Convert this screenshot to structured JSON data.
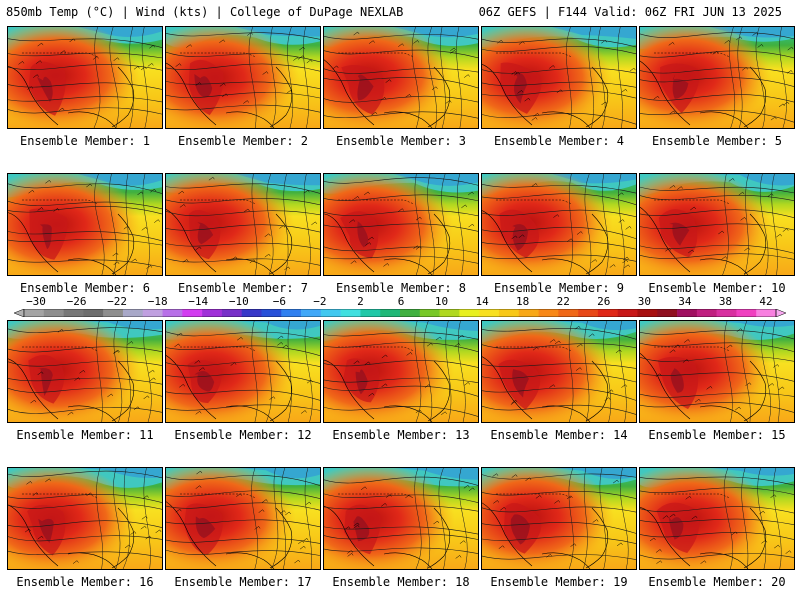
{
  "header": {
    "left": "850mb Temp (°C) | Wind (kts) | College of DuPage NEXLAB",
    "right": "06Z GEFS | F144 Valid: 06Z FRI JUN 13 2025"
  },
  "panels": [
    {
      "label": "Ensemble Member: 1"
    },
    {
      "label": "Ensemble Member: 2"
    },
    {
      "label": "Ensemble Member: 3"
    },
    {
      "label": "Ensemble Member: 4"
    },
    {
      "label": "Ensemble Member: 5"
    },
    {
      "label": "Ensemble Member: 6"
    },
    {
      "label": "Ensemble Member: 7"
    },
    {
      "label": "Ensemble Member: 8"
    },
    {
      "label": "Ensemble Member: 9"
    },
    {
      "label": "Ensemble Member: 10"
    },
    {
      "label": "Ensemble Member: 11"
    },
    {
      "label": "Ensemble Member: 12"
    },
    {
      "label": "Ensemble Member: 13"
    },
    {
      "label": "Ensemble Member: 14"
    },
    {
      "label": "Ensemble Member: 15"
    },
    {
      "label": "Ensemble Member: 16"
    },
    {
      "label": "Ensemble Member: 17"
    },
    {
      "label": "Ensemble Member: 18"
    },
    {
      "label": "Ensemble Member: 19"
    },
    {
      "label": "Ensemble Member: 20"
    }
  ],
  "colorbar": {
    "ticks": [
      "−30",
      "−26",
      "−22",
      "−18",
      "−14",
      "−10",
      "−6",
      "−2",
      "2",
      "6",
      "10",
      "14",
      "18",
      "22",
      "26",
      "30",
      "34",
      "38",
      "42"
    ],
    "colors": [
      "#a4a4a4",
      "#8e8e8e",
      "#787878",
      "#6e6e6e",
      "#8e8e8e",
      "#a8a8c8",
      "#c0a0e0",
      "#b870e8",
      "#d23cf0",
      "#a030d8",
      "#7830c8",
      "#3838c8",
      "#2850d8",
      "#3080f0",
      "#40a8f8",
      "#40c8f0",
      "#40e0e0",
      "#20c8a8",
      "#20b878",
      "#40b040",
      "#78c828",
      "#b0d820",
      "#e8f020",
      "#f8e020",
      "#f8c818",
      "#f8a818",
      "#f88818",
      "#f06818",
      "#e84818",
      "#e02818",
      "#c81818",
      "#a81010",
      "#901020",
      "#a01060",
      "#c02080",
      "#d830a0",
      "#f040c0",
      "#f880e0"
    ]
  }
}
